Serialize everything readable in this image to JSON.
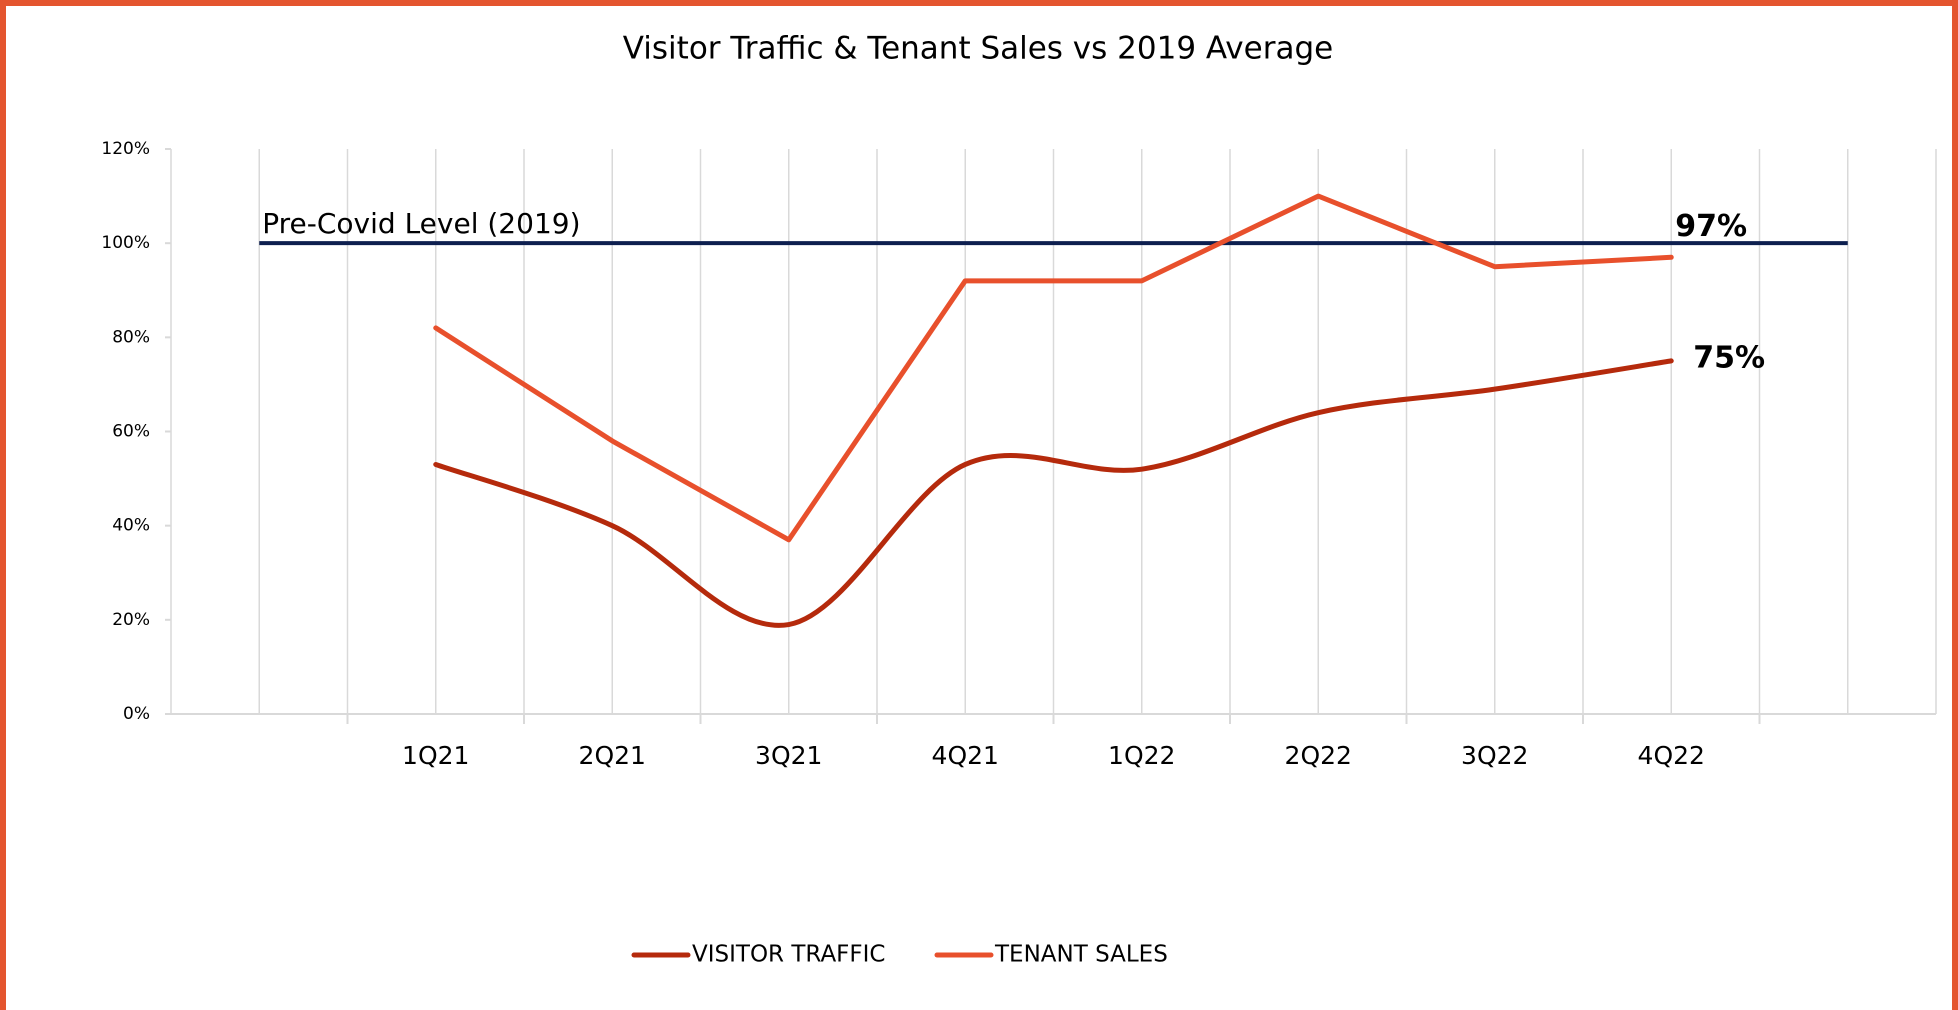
{
  "chart_data": {
    "type": "line",
    "title": "Visitor Traffic & Tenant Sales vs 2019 Average",
    "categories": [
      null,
      "1Q21",
      "2Q21",
      "3Q21",
      "4Q21",
      "1Q22",
      "2Q22",
      "3Q22",
      "4Q22",
      null
    ],
    "series": [
      {
        "name": "VISITOR TRAFFIC",
        "color": "#b52a0c",
        "smooth": true,
        "values": [
          null,
          53,
          40,
          19,
          53,
          52,
          64,
          69,
          75,
          null
        ],
        "value_labels": [
          null,
          null,
          null,
          null,
          null,
          null,
          null,
          null,
          "75%",
          null
        ]
      },
      {
        "name": "TENANT SALES",
        "color": "#e8502c",
        "smooth": false,
        "values": [
          null,
          82,
          58,
          37,
          92,
          92,
          110,
          95,
          97,
          null
        ],
        "value_labels": [
          null,
          null,
          null,
          null,
          null,
          null,
          null,
          null,
          "97%",
          null
        ]
      }
    ],
    "reference_line": {
      "name": "Pre-Covid Level (2019)",
      "value": 100,
      "color": "#0d1f4f"
    },
    "ylim": [
      0,
      120
    ],
    "yticks": [
      {
        "value": 0,
        "label": "0%"
      },
      {
        "value": 20,
        "label": "20%"
      },
      {
        "value": 40,
        "label": "40%"
      },
      {
        "value": 60,
        "label": "60%"
      },
      {
        "value": 80,
        "label": "80%"
      },
      {
        "value": 100,
        "label": "100%"
      },
      {
        "value": 120,
        "label": "120%"
      }
    ],
    "grid": "x",
    "legend": "bottom"
  }
}
